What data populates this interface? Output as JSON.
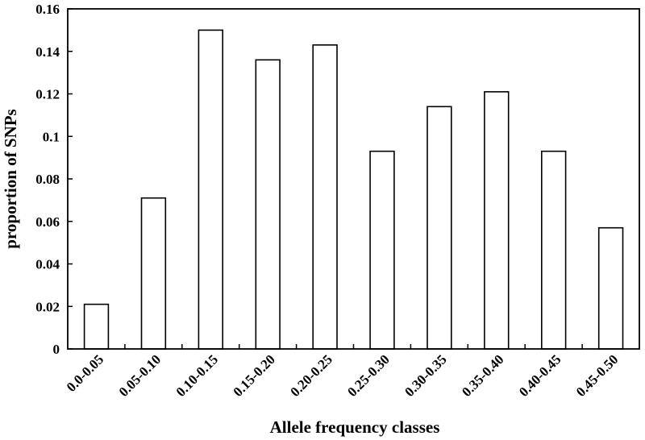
{
  "chart_data": {
    "type": "bar",
    "title": "",
    "xlabel": "Allele frequency classes",
    "ylabel": "proportion of SNPs",
    "categories": [
      "0.0-0.05",
      "0.05-0.10",
      "0.10-0.15",
      "0.15-0.20",
      "0.20-0.25",
      "0.25-0.30",
      "0.30-0.35",
      "0.35-0.40",
      "0.40-0.45",
      "0.45-0.50"
    ],
    "values": [
      0.021,
      0.071,
      0.15,
      0.136,
      0.143,
      0.093,
      0.114,
      0.121,
      0.093,
      0.057
    ],
    "ylim": [
      0,
      0.16
    ],
    "yticks": [
      0,
      0.02,
      0.04,
      0.06,
      0.08,
      0.1,
      0.12,
      0.14,
      0.16
    ],
    "ytick_labels": [
      "0",
      "0.02",
      "0.04",
      "0.06",
      "0.08",
      "0.1",
      "0.12",
      "0.14",
      "0.16"
    ],
    "grid": false,
    "legend": "none",
    "colors": {
      "bar_fill": "#ffffff",
      "bar_stroke": "#000000"
    }
  }
}
